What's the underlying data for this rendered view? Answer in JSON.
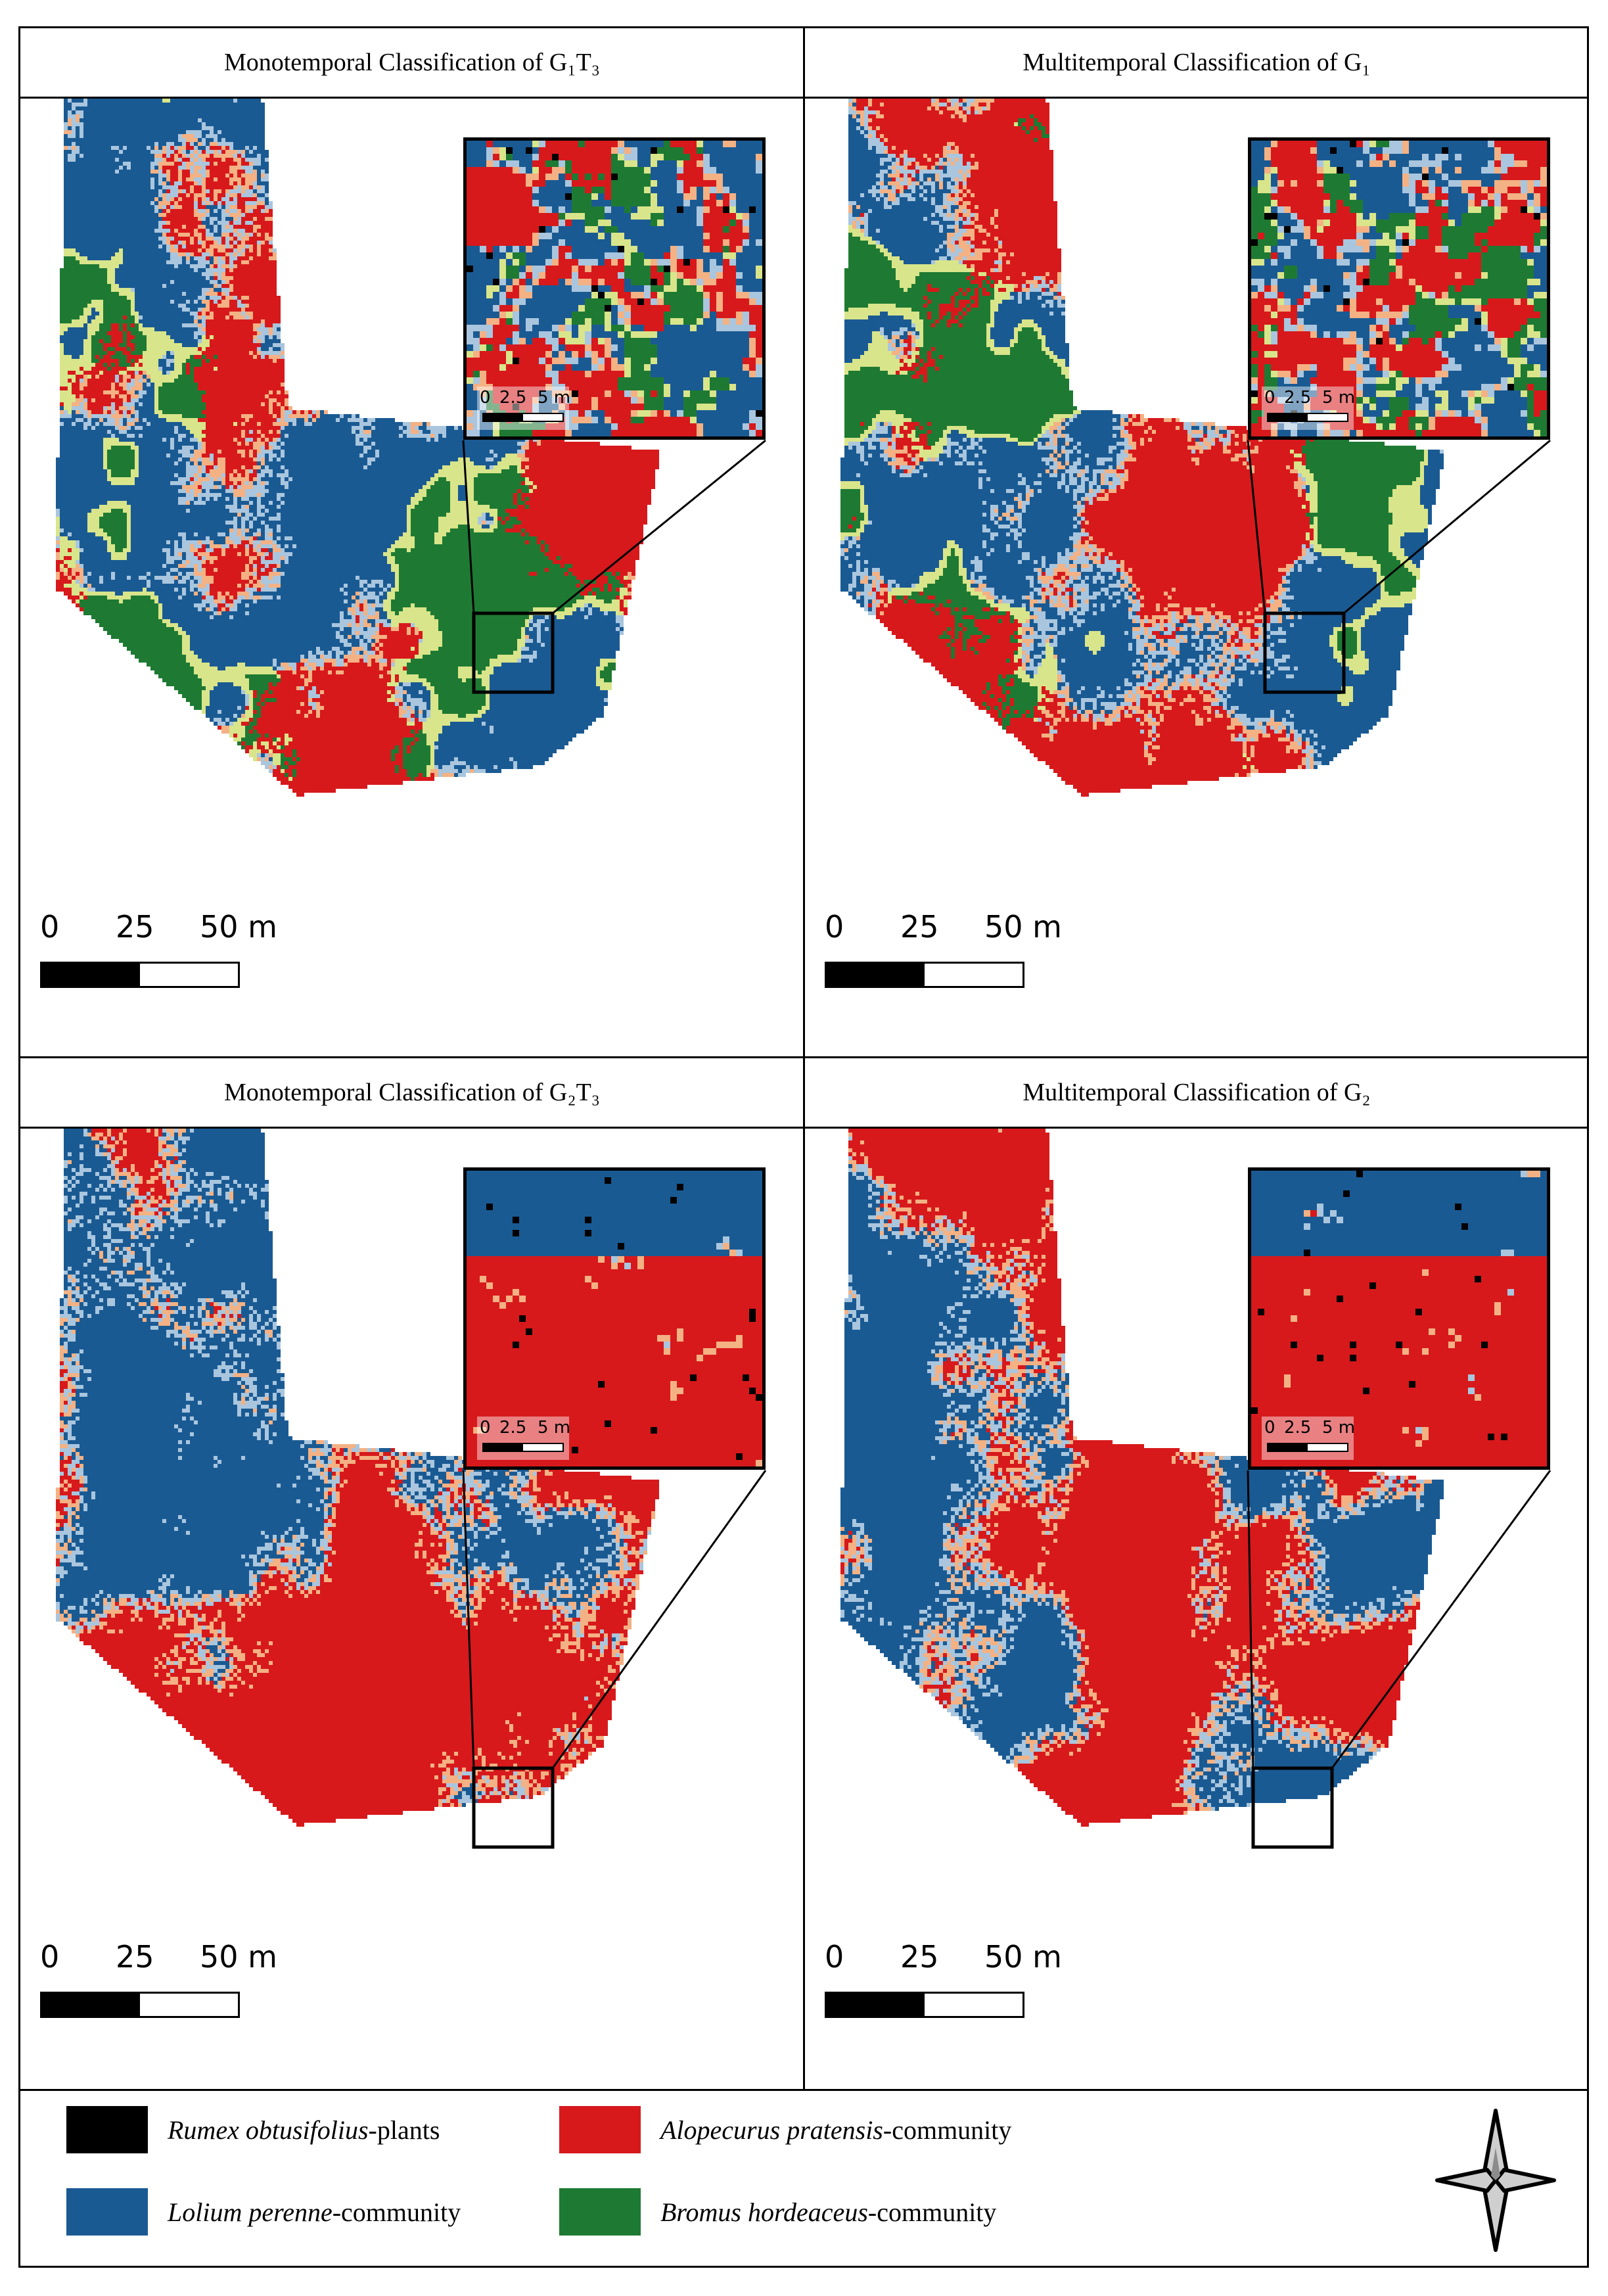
{
  "panels": [
    {
      "id": "g1t3",
      "title": "Monotemporal Classification of G₁T₃",
      "scheme": "g1"
    },
    {
      "id": "g1",
      "title": "Multitemporal Classification of G₁",
      "scheme": "g1m"
    },
    {
      "id": "g2t3",
      "title": "Monotemporal Classification of G₂T₃",
      "scheme": "g2"
    },
    {
      "id": "g2",
      "title": "Multitemporal Classification of G₂",
      "scheme": "g2m"
    }
  ],
  "scale_bar": {
    "labels": [
      "0",
      "25",
      "50 m"
    ]
  },
  "inset_scale": {
    "labels": [
      "0",
      "2.5",
      "5 m"
    ]
  },
  "legend": [
    {
      "italic": "Rumex obtusifolius",
      "suffix": "-plants",
      "color": "#000000"
    },
    {
      "italic": "Alopecurus pratensis",
      "suffix": "-community",
      "color": "#d7191c"
    },
    {
      "italic": "Lolium perenne",
      "suffix": "-community",
      "color": "#1a5a93"
    },
    {
      "italic": "Bromus hordeaceus",
      "suffix": "-community",
      "color": "#1e7a33"
    }
  ],
  "colors": {
    "red": "#d7191c",
    "blue": "#1a5a93",
    "green": "#1e7a33",
    "black": "#000000",
    "transition_light": "#a9c6de",
    "transition_warm": "#f4b183",
    "transition_yellow": "#d9e58a"
  },
  "icons": {
    "north_arrow": "compass-star-icon"
  }
}
